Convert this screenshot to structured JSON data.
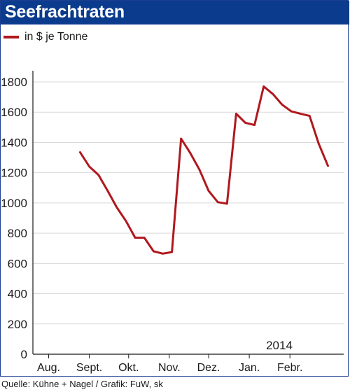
{
  "chart_data": {
    "type": "line",
    "title": "Seefrachtraten",
    "series": [
      {
        "name": "in $ je Tonne",
        "color": "#b0181e",
        "points": [
          {
            "x": "2013-08-25",
            "y": 1335
          },
          {
            "x": "2013-09-01",
            "y": 1240
          },
          {
            "x": "2013-09-08",
            "y": 1185
          },
          {
            "x": "2013-09-15",
            "y": 1080
          },
          {
            "x": "2013-09-22",
            "y": 970
          },
          {
            "x": "2013-09-29",
            "y": 880
          },
          {
            "x": "2013-10-06",
            "y": 770
          },
          {
            "x": "2013-10-13",
            "y": 770
          },
          {
            "x": "2013-10-20",
            "y": 680
          },
          {
            "x": "2013-10-27",
            "y": 665
          },
          {
            "x": "2013-11-03",
            "y": 675
          },
          {
            "x": "2013-11-10",
            "y": 1425
          },
          {
            "x": "2013-11-17",
            "y": 1330
          },
          {
            "x": "2013-11-24",
            "y": 1220
          },
          {
            "x": "2013-12-01",
            "y": 1080
          },
          {
            "x": "2013-12-08",
            "y": 1005
          },
          {
            "x": "2013-12-15",
            "y": 995
          },
          {
            "x": "2013-12-22",
            "y": 1590
          },
          {
            "x": "2013-12-29",
            "y": 1530
          },
          {
            "x": "2014-01-05",
            "y": 1515
          },
          {
            "x": "2014-01-12",
            "y": 1770
          },
          {
            "x": "2014-01-19",
            "y": 1720
          },
          {
            "x": "2014-01-26",
            "y": 1650
          },
          {
            "x": "2014-02-02",
            "y": 1605
          },
          {
            "x": "2014-02-09",
            "y": 1590
          },
          {
            "x": "2014-02-16",
            "y": 1575
          },
          {
            "x": "2014-02-23",
            "y": 1390
          },
          {
            "x": "2014-03-02",
            "y": 1245
          }
        ]
      }
    ],
    "x_axis": {
      "labels": [
        {
          "text": "Aug.",
          "date": "2013-08-01"
        },
        {
          "text": "Sept.",
          "date": "2013-09-01"
        },
        {
          "text": "Okt.",
          "date": "2013-10-01"
        },
        {
          "text": "Nov.",
          "date": "2013-11-01"
        },
        {
          "text": "Dez.",
          "date": "2013-12-01"
        },
        {
          "text": "Jan.",
          "date": "2014-01-01"
        },
        {
          "text": "Febr.",
          "date": "2014-02-01"
        }
      ],
      "range": [
        "2013-07-20",
        "2014-03-14"
      ],
      "year_annotation": "2014"
    },
    "y_axis": {
      "ticks": [
        "0",
        "200",
        "400",
        "600",
        "800",
        "1000",
        "1200",
        "1400",
        "1600",
        "1800"
      ],
      "ylim": [
        0,
        1800
      ],
      "grid": true,
      "grid_color": "#d9d9d9"
    },
    "legend_position": "top-left"
  },
  "source": "Quelle: Kühne + Nagel / Grafik: FuW, sk"
}
